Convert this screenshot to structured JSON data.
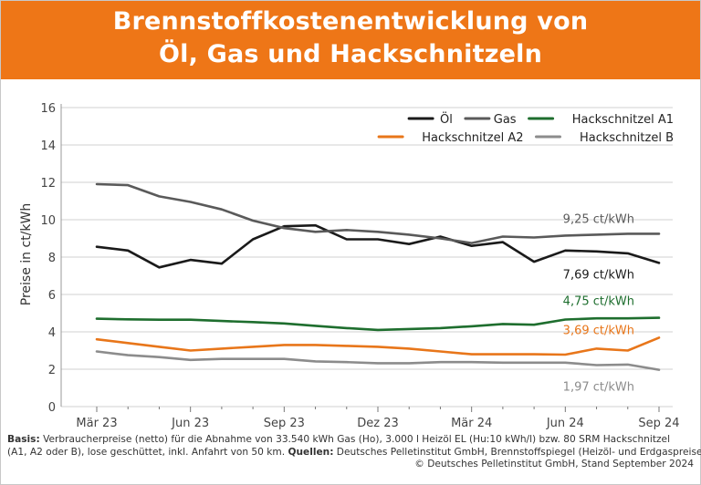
{
  "title_line1": "Brennstoffkostenentwicklung von",
  "title_line2": "Öl, Gas und Hackschnitzeln",
  "colors": {
    "header_bg": "#ee7617",
    "oel": "#1a1a1a",
    "gas": "#5a5a5a",
    "hackschnitzel_a1": "#1e6e2e",
    "hackschnitzel_a2": "#e8761a",
    "hackschnitzel_b": "#8c8c8c"
  },
  "chart_data": {
    "type": "line",
    "ylabel": "Preise in ct/kWh",
    "ylim": [
      0,
      16
    ],
    "yticks": [
      "0",
      "2",
      "4",
      "6",
      "8",
      "10",
      "12",
      "14",
      "16"
    ],
    "x": [
      "Mär 23",
      "Apr 23",
      "Mai 23",
      "Jun 23",
      "Jul 23",
      "Aug 23",
      "Sep 23",
      "Okt 23",
      "Nov 23",
      "Dez 23",
      "Jan 24",
      "Feb 24",
      "Mär 24",
      "Apr 24",
      "Mai 24",
      "Jun 24",
      "Jul 24",
      "Aug 24",
      "Sep 24"
    ],
    "xtick_labels": [
      "Mär 23",
      "Jun 23",
      "Sep 23",
      "Dez 23",
      "Mär 24",
      "Jun 24",
      "Sep 24"
    ],
    "grid": true,
    "legend_position": "top-right",
    "series": [
      {
        "name": "Öl",
        "color": "#1a1a1a",
        "values": [
          8.55,
          8.35,
          7.45,
          7.85,
          7.65,
          8.95,
          9.65,
          9.7,
          8.95,
          8.95,
          8.7,
          9.1,
          8.6,
          8.8,
          7.75,
          8.35,
          8.3,
          8.2,
          7.69
        ]
      },
      {
        "name": "Gas",
        "color": "#5a5a5a",
        "values": [
          11.9,
          11.85,
          11.25,
          10.95,
          10.55,
          9.95,
          9.55,
          9.35,
          9.45,
          9.35,
          9.2,
          9.0,
          8.75,
          9.1,
          9.05,
          9.15,
          9.2,
          9.25,
          9.25
        ]
      },
      {
        "name": "Hackschnitzel A1",
        "color": "#1e6e2e",
        "values": [
          4.7,
          4.67,
          4.65,
          4.65,
          4.58,
          4.52,
          4.45,
          4.32,
          4.2,
          4.1,
          4.15,
          4.2,
          4.3,
          4.42,
          4.38,
          4.66,
          4.72,
          4.72,
          4.75
        ]
      },
      {
        "name": "Hackschnitzel A2",
        "color": "#e8761a",
        "values": [
          3.6,
          3.4,
          3.2,
          3.0,
          3.1,
          3.2,
          3.3,
          3.3,
          3.25,
          3.2,
          3.1,
          2.95,
          2.8,
          2.8,
          2.8,
          2.78,
          3.1,
          3.0,
          3.69
        ]
      },
      {
        "name": "Hackschnitzel B",
        "color": "#8c8c8c",
        "values": [
          2.95,
          2.75,
          2.65,
          2.5,
          2.55,
          2.55,
          2.55,
          2.42,
          2.38,
          2.32,
          2.32,
          2.38,
          2.38,
          2.35,
          2.35,
          2.35,
          2.22,
          2.25,
          1.97
        ]
      }
    ],
    "annotations": [
      {
        "series": "Gas",
        "text": "9,25 ct/kWh",
        "color": "#5a5a5a"
      },
      {
        "series": "Öl",
        "text": "7,69 ct/kWh",
        "color": "#1a1a1a"
      },
      {
        "series": "Hackschnitzel A1",
        "text": "4,75 ct/kWh",
        "color": "#1e6e2e"
      },
      {
        "series": "Hackschnitzel A2",
        "text": "3,69 ct/kWh",
        "color": "#e8761a"
      },
      {
        "series": "Hackschnitzel B",
        "text": "1,97 ct/kWh",
        "color": "#8c8c8c"
      }
    ]
  },
  "footer": {
    "basis_label": "Basis:",
    "basis_text": " Verbraucherpreise (netto) für die Abnahme von 33.540 kWh Gas (Ho), 3.000 l Heizöl EL (Hu:10 kWh/l) bzw. 80 SRM Hackschnitzel",
    "line2_text": "(A1, A2 oder B), lose geschüttet, inkl. Anfahrt von 50 km. ",
    "quellen_label": "Quellen:",
    "quellen_text": " Deutsches Pelletinstitut GmbH, Brennstoffspiegel (Heizöl- und Erdgaspreise)",
    "copyright": "© Deutsches Pelletinstitut GmbH, Stand September 2024"
  }
}
